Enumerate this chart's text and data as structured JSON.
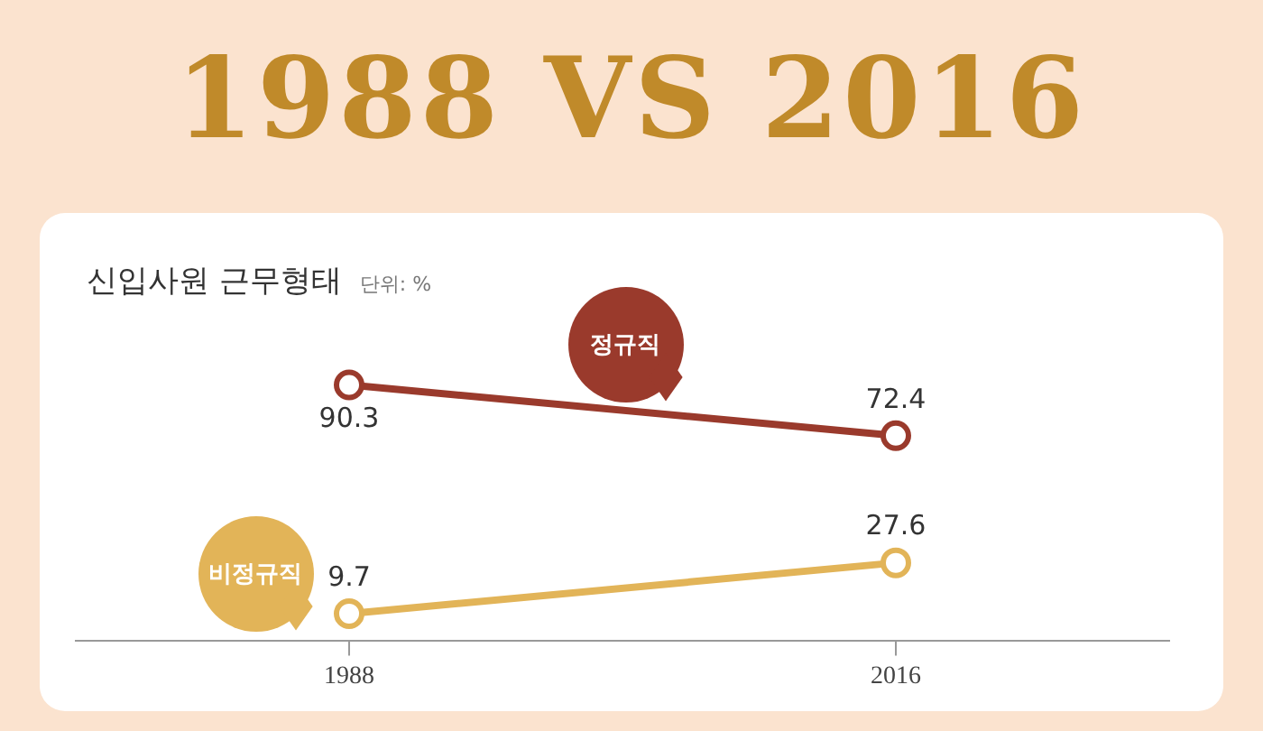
{
  "chart_data": {
    "type": "line",
    "title": "1988 VS 2016",
    "subtitle": "신입사원 근무형태",
    "annotations": [
      "단위: %"
    ],
    "categories": [
      "1988",
      "2016"
    ],
    "series": [
      {
        "name": "정규직",
        "color": "#9a3a2c",
        "values": [
          90.3,
          72.4
        ]
      },
      {
        "name": "비정규직",
        "color": "#e2b458",
        "values": [
          9.7,
          27.6
        ]
      }
    ],
    "data_labels": true,
    "marker": "circle",
    "line_style": "solid",
    "grid": false,
    "legend": false,
    "tick_labels": "x"
  }
}
